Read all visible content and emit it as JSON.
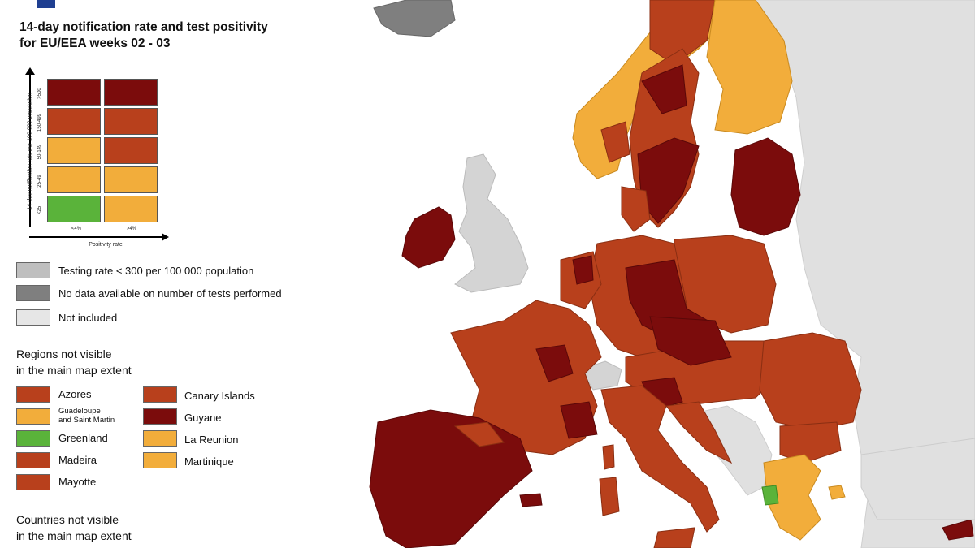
{
  "title_line1": "14-day notification rate and test positivity",
  "title_line2": "for EU/EEA weeks 02 - 03",
  "matrix": {
    "y_axis_label": "14-day notification rate per 100 000 population",
    "x_axis_label": "Positivity rate",
    "row_labels": [
      ">500",
      "150-499",
      "50-149",
      "25-49",
      "<25"
    ],
    "col_labels": [
      "<4%",
      ">4%"
    ],
    "cells": [
      [
        "#7b0c0c",
        "#7b0c0c"
      ],
      [
        "#b8401c",
        "#b8401c"
      ],
      [
        "#f2ad3b",
        "#b8401c"
      ],
      [
        "#f2ad3b",
        "#f2ad3b"
      ],
      [
        "#5ab33a",
        "#f2ad3b"
      ]
    ]
  },
  "legend_other": [
    {
      "label": "Testing rate < 300 per 100 000 population",
      "color": "#bfbfbf"
    },
    {
      "label": "No data available on number of tests performed",
      "color": "#7f7f7f"
    },
    {
      "label": "Not included",
      "color": "#e6e6e6"
    }
  ],
  "regions_header_line1": "Regions not visible",
  "regions_header_line2": "in the main map extent",
  "regions_left": [
    {
      "label": "Azores",
      "color": "#b8401c"
    },
    {
      "label_line1": "Guadeloupe",
      "label_line2": "and Saint Martin",
      "color": "#f2ad3b"
    },
    {
      "label": "Greenland",
      "color": "#5ab33a"
    },
    {
      "label": "Madeira",
      "color": "#b8401c"
    },
    {
      "label": "Mayotte",
      "color": "#b8401c"
    }
  ],
  "regions_right": [
    {
      "label": "Canary Islands",
      "color": "#b8401c"
    },
    {
      "label": "Guyane",
      "color": "#7b0c0c"
    },
    {
      "label": "La Reunion",
      "color": "#f2ad3b"
    },
    {
      "label": "Martinique",
      "color": "#f2ad3b"
    }
  ],
  "countries_header_line1": "Countries not visible",
  "countries_header_line2": "in the main map extent",
  "colors": {
    "dark_red": "#7b0c0c",
    "red": "#b8401c",
    "orange": "#f2ad3b",
    "green": "#5ab33a",
    "grey_testing": "#bfbfbf",
    "grey_nodata": "#7f7f7f",
    "not_included": "#e6e6e6",
    "sea": "#ffffff"
  }
}
